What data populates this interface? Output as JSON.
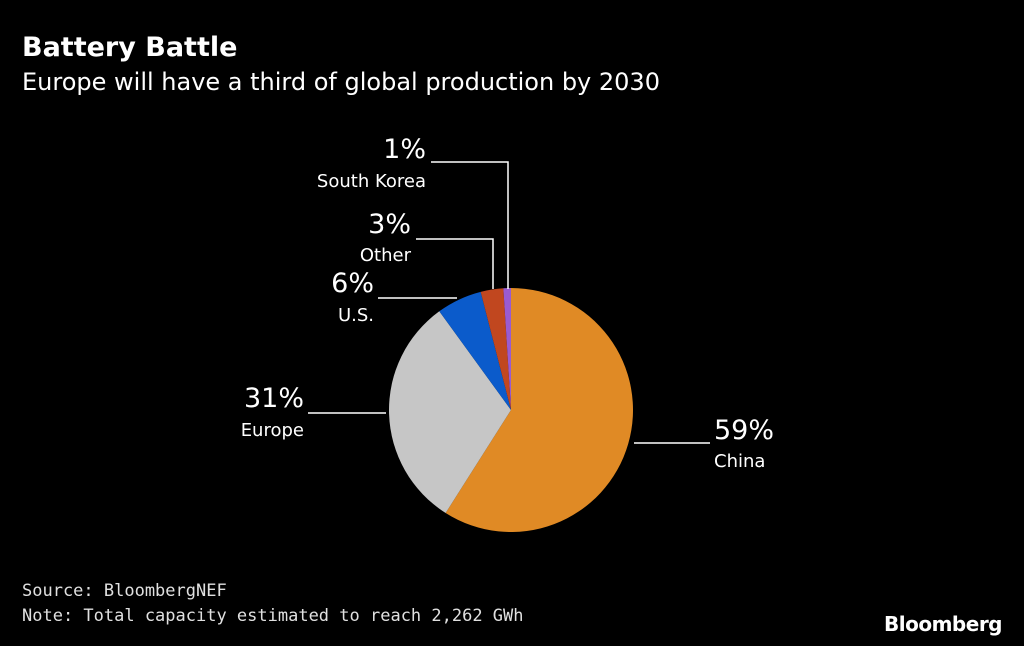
{
  "title": "Battery Battle",
  "subtitle": "Europe will have a third of global production by 2030",
  "source": "Source: BloombergNEF",
  "note": "Note: Total capacity estimated to reach 2,262 GWh",
  "logo": "Bloomberg",
  "chart_data": {
    "type": "pie",
    "title": "Battery Battle",
    "subtitle": "Europe will have a third of global production by 2030",
    "start": "top",
    "direction": "clockwise",
    "slices": [
      {
        "label": "China",
        "value": 59,
        "display": "59%",
        "color": "#e08a25"
      },
      {
        "label": "Europe",
        "value": 31,
        "display": "31%",
        "color": "#c6c6c6"
      },
      {
        "label": "U.S.",
        "value": 6,
        "display": "6%",
        "color": "#0b5bcb"
      },
      {
        "label": "Other",
        "value": 3,
        "display": "3%",
        "color": "#c1471f"
      },
      {
        "label": "South Korea",
        "value": 1,
        "display": "1%",
        "color": "#9a5bd0"
      }
    ]
  }
}
